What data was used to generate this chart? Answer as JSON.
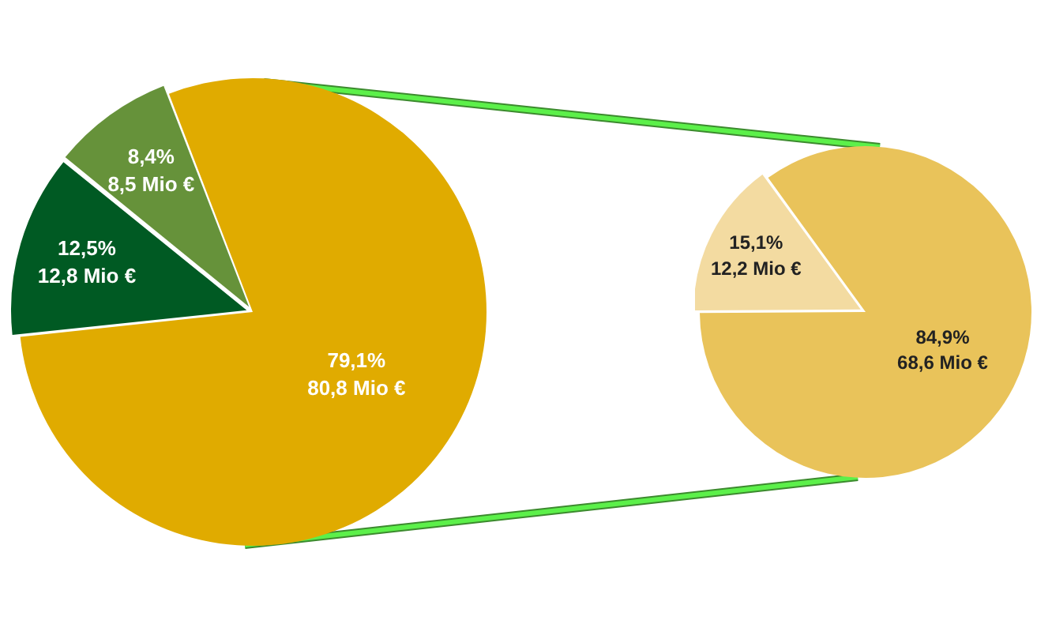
{
  "chart_data": [
    {
      "type": "pie",
      "categories": [
        null,
        null,
        null
      ],
      "values": [
        80.8,
        12.8,
        8.5
      ],
      "value_labels": [
        "79,1%\n80,8 Mio €",
        "12,5%\n12,8 Mio €",
        "8,4%\n8,5 Mio €"
      ],
      "colors": [
        "#e0ab00",
        "#005a23",
        "#66923a"
      ]
    },
    {
      "type": "pie",
      "categories": [
        null,
        null
      ],
      "values": [
        68.6,
        12.2
      ],
      "value_labels": [
        "84,9%\n68,6 Mio €",
        "15,1%\n12,2 Mio €"
      ],
      "colors": [
        "#e9c35a",
        "#f3dba1"
      ]
    }
  ]
}
